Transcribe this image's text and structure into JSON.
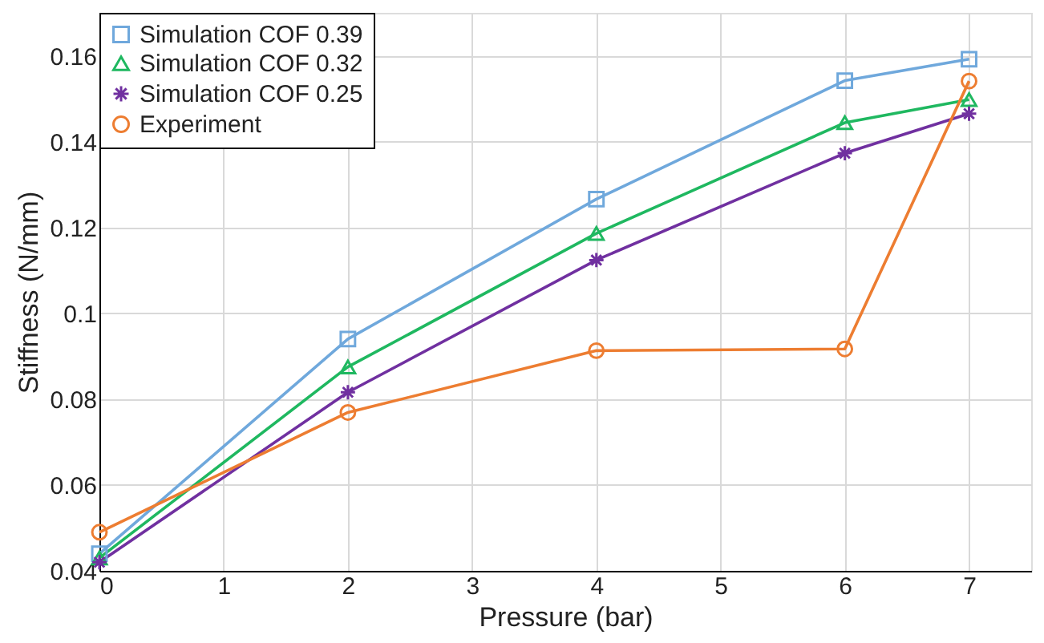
{
  "chart_data": {
    "type": "line",
    "xlabel": "Pressure (bar)",
    "ylabel": "Stiffness (N/mm)",
    "x": [
      0,
      2,
      4,
      6,
      7
    ],
    "series": [
      {
        "name": "Simulation COF 0.39",
        "color": "#6fa8dc",
        "marker": "square",
        "values": [
          0.044,
          0.094,
          0.1266,
          0.1542,
          0.1592
        ]
      },
      {
        "name": "Simulation COF 0.32",
        "color": "#1fb860",
        "marker": "triangle",
        "values": [
          0.043,
          0.0875,
          0.1186,
          0.1444,
          0.1498
        ]
      },
      {
        "name": "Simulation COF 0.25",
        "color": "#7030a0",
        "marker": "cross",
        "values": [
          0.042,
          0.0816,
          0.1124,
          0.1373,
          0.1465
        ]
      },
      {
        "name": "Experiment",
        "color": "#ed7d31",
        "marker": "circle",
        "values": [
          0.049,
          0.0769,
          0.0913,
          0.0917,
          0.1541
        ]
      }
    ],
    "xlim": [
      0,
      7.5
    ],
    "xticks": [
      0,
      1,
      2,
      3,
      4,
      5,
      6,
      7
    ],
    "ylim": [
      0.04,
      0.17
    ],
    "yticks": [
      0.04,
      0.06,
      0.08,
      0.1,
      0.12,
      0.14,
      0.16
    ],
    "grid": true,
    "legend": "top left",
    "line_style": "solid"
  }
}
